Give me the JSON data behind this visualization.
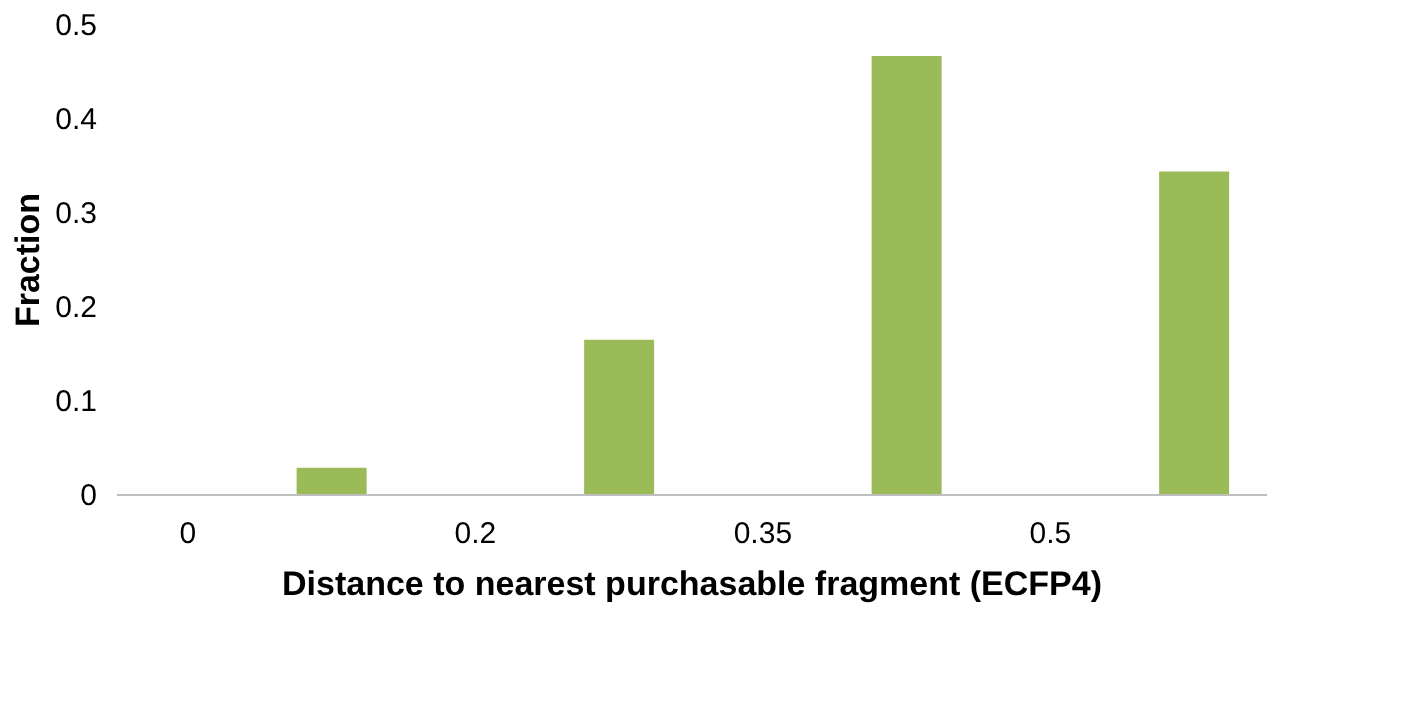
{
  "chart_data": {
    "type": "bar",
    "xlabel": "Distance to nearest purchasable fragment (ECFP4)",
    "ylabel": "Fraction",
    "categories": [
      "0",
      null,
      "0.2",
      null,
      "0.35",
      null,
      "0.5",
      null
    ],
    "series": [
      {
        "color": "#9bbb59",
        "values": [
          0,
          0.028,
          0,
          0.164,
          0,
          0.466,
          0,
          0.343
        ]
      }
    ],
    "ylim": [
      0,
      0.5
    ],
    "yticks": [
      0,
      0.1,
      0.2,
      0.3,
      0.4,
      0.5
    ],
    "grid": false
  }
}
